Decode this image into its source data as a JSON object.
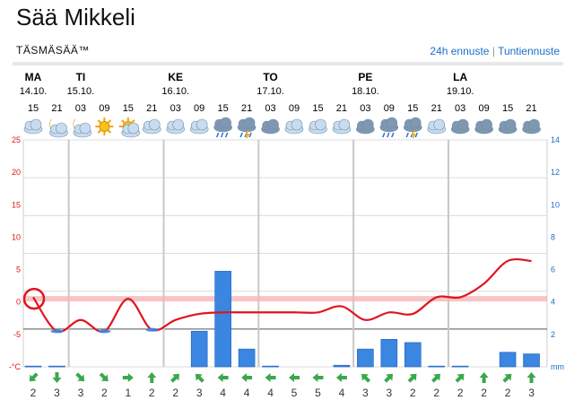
{
  "header": {
    "title": "Sää Mikkeli",
    "subtitle": "TÄSMÄSÄÄ™",
    "link_24h": "24h ennuste",
    "separator": "|",
    "link_hourly": "Tuntiennuste"
  },
  "days": [
    {
      "name": "MA",
      "date": "14.10."
    },
    {
      "name": "TI",
      "date": "15.10."
    },
    {
      "name": "KE",
      "date": "16.10."
    },
    {
      "name": "TO",
      "date": "17.10."
    },
    {
      "name": "PE",
      "date": "18.10."
    },
    {
      "name": "LA",
      "date": "19.10."
    }
  ],
  "hours": [
    "15",
    "21",
    "03",
    "09",
    "15",
    "21",
    "03",
    "09",
    "15",
    "21",
    "03",
    "09",
    "15",
    "21",
    "03",
    "09",
    "15",
    "21",
    "03",
    "09",
    "15",
    "21"
  ],
  "weather_icons": [
    "cloudy",
    "partly-cloudy-night",
    "moon-cloud",
    "sun",
    "sun-cloud",
    "cloudy",
    "cloudy",
    "cloudy",
    "rain-cloud",
    "thunder-rain-cloud",
    "dark-cloud",
    "cloudy",
    "cloudy",
    "cloudy",
    "dark-cloud",
    "rain-cloud",
    "thunder-rain-cloud",
    "cloudy",
    "dark-cloud",
    "dark-cloud",
    "dark-cloud",
    "dark-cloud"
  ],
  "chart_data": {
    "type": "line",
    "x": [
      "15",
      "21",
      "03",
      "09",
      "15",
      "21",
      "03",
      "09",
      "15",
      "21",
      "03",
      "09",
      "15",
      "21",
      "03",
      "09",
      "15",
      "21",
      "03",
      "09",
      "15",
      "21"
    ],
    "series": [
      {
        "kind": "line",
        "axis": "left",
        "color": "#e0141e",
        "values": [
          4.2,
          -0.3,
          1.2,
          -0.3,
          4.0,
          -0.1,
          1.2,
          2.0,
          2.2,
          2.2,
          2.2,
          2.2,
          2.2,
          3.0,
          1.2,
          2.2,
          2.0,
          4.2,
          4.2,
          6.0,
          9.0,
          9.0
        ]
      },
      {
        "kind": "bar",
        "axis": "right",
        "color": "#3a86e0",
        "values": [
          0.05,
          0.05,
          0,
          0,
          0,
          0,
          0,
          2.2,
          5.9,
          1.1,
          0.05,
          0,
          0,
          0.1,
          1.1,
          1.7,
          1.5,
          0.05,
          0.05,
          0,
          0.9,
          0.8
        ]
      }
    ],
    "ylim_left": [
      -5,
      25
    ],
    "yticks_left": [
      "25",
      "20",
      "15",
      "10",
      "5",
      "0",
      "-5",
      "-°C"
    ],
    "ylim_right": [
      0,
      14
    ],
    "yticks_right": [
      "14",
      "12",
      "10",
      "8",
      "6",
      "4",
      "2",
      "mm"
    ],
    "reference_temp": 4,
    "grid": true
  },
  "wind": {
    "directions": [
      "sw",
      "s",
      "se",
      "se",
      "e",
      "n",
      "ne",
      "nw",
      "w",
      "w",
      "w",
      "w",
      "w",
      "w",
      "nw",
      "ne",
      "ne",
      "ne",
      "ne",
      "n",
      "ne",
      "n"
    ],
    "speeds": [
      "2",
      "3",
      "3",
      "2",
      "1",
      "2",
      "2",
      "3",
      "4",
      "4",
      "4",
      "5",
      "5",
      "4",
      "3",
      "3",
      "2",
      "2",
      "2",
      "2",
      "2",
      "3"
    ]
  },
  "colors": {
    "temperature": "#e0141e",
    "precipitation": "#3a86e0",
    "link": "#1a6fc9"
  }
}
